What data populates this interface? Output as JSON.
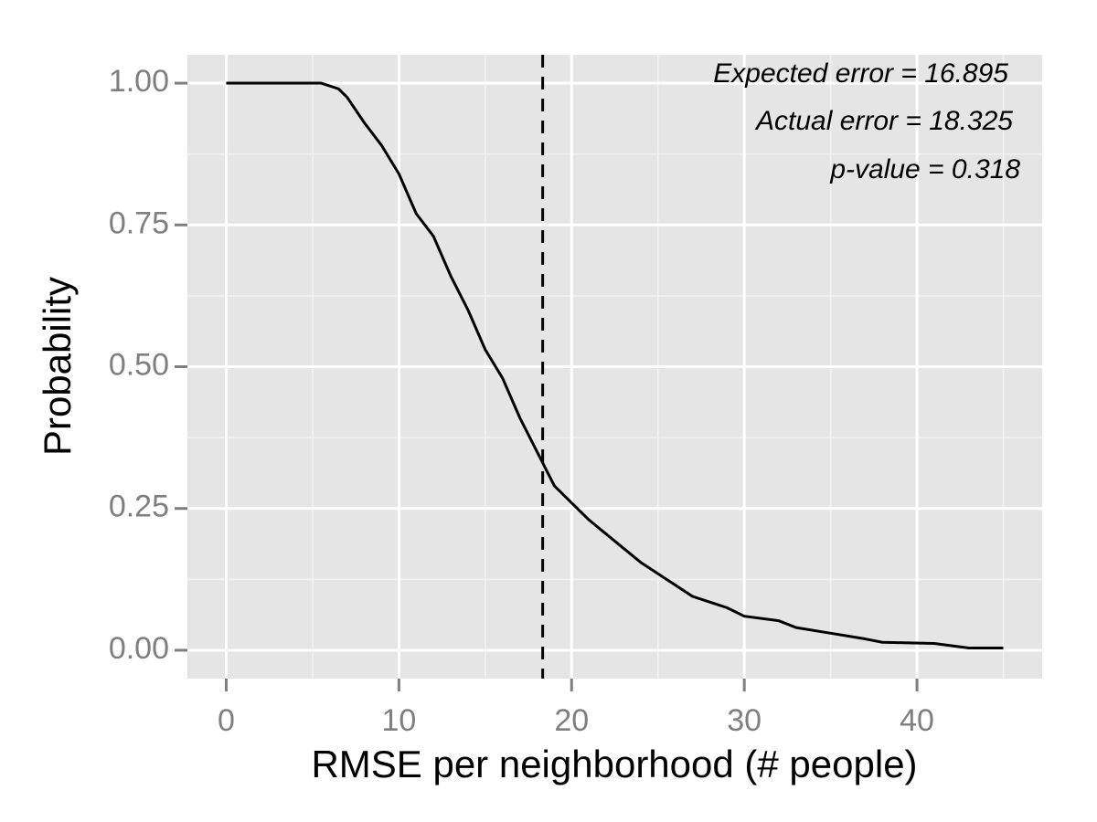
{
  "chart_data": {
    "type": "line",
    "x_label": "RMSE per neighborhood (# people)",
    "y_label": "Probability",
    "annotations": [
      "Expected error = 16.895",
      "Actual error = 18.325",
      "p-value = 0.318"
    ],
    "vline": 18.325,
    "xlim": [
      -2.25,
      47.25
    ],
    "ylim": [
      -0.05,
      1.05
    ],
    "xticks": [
      0,
      10,
      20,
      30,
      40
    ],
    "xminorticks": [
      5,
      15,
      25,
      35,
      45
    ],
    "yticks": [
      {
        "value": 0,
        "label": "0.00"
      },
      {
        "value": 0.25,
        "label": "0.25"
      },
      {
        "value": 0.5,
        "label": "0.50"
      },
      {
        "value": 0.75,
        "label": "0.75"
      },
      {
        "value": 1,
        "label": "1.00"
      }
    ],
    "yminorticks": [
      0.125,
      0.375,
      0.625,
      0.875
    ],
    "grid": true,
    "color": "#000000",
    "x": [
      0,
      5.5,
      6.5,
      7,
      8,
      9,
      10,
      11,
      12,
      13,
      14,
      15,
      16,
      17,
      18,
      18.5,
      19,
      20,
      21,
      22,
      23,
      24,
      25,
      26,
      27,
      28,
      29,
      30,
      32,
      33,
      35,
      37,
      38,
      41,
      43,
      45
    ],
    "values": [
      1,
      1,
      0.99,
      0.975,
      0.93,
      0.89,
      0.84,
      0.77,
      0.73,
      0.66,
      0.6,
      0.53,
      0.48,
      0.41,
      0.35,
      0.32,
      0.29,
      0.26,
      0.23,
      0.205,
      0.18,
      0.155,
      0.135,
      0.115,
      0.095,
      0.085,
      0.075,
      0.06,
      0.052,
      0.04,
      0.03,
      0.02,
      0.014,
      0.012,
      0.004,
      0.004
    ]
  }
}
